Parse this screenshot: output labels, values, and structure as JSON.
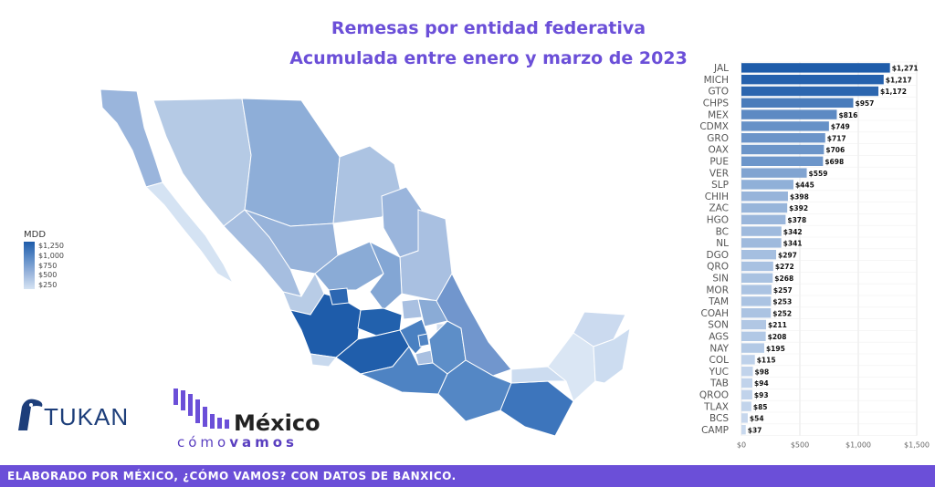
{
  "title_line1": "Remesas por entidad federativa",
  "title_line2": "Acumulada entre enero y marzo de 2023",
  "legend": {
    "title": "MDD",
    "labels": [
      "$1,250",
      "$1,000",
      "$750",
      "$500",
      "$250"
    ]
  },
  "logos": {
    "tukan": "TUKAN",
    "mcv_name": "México",
    "mcv_sub_light": "cómo",
    "mcv_sub_bold": "vamos"
  },
  "footer": "ELABORADO POR MÉXICO, ¿CÓMO VAMOS? CON DATOS DE BANXICO.",
  "colors": {
    "accent": "#6b4fd8",
    "bar_dark": "#1e5caa",
    "bar_light": "#c9d9ee"
  },
  "chart_data": {
    "type": "bar",
    "orientation": "horizontal",
    "categories": [
      "JAL",
      "MICH",
      "GTO",
      "CHPS",
      "MEX",
      "CDMX",
      "GRO",
      "OAX",
      "PUE",
      "VER",
      "SLP",
      "CHIH",
      "ZAC",
      "HGO",
      "BC",
      "NL",
      "DGO",
      "QRO",
      "SIN",
      "MOR",
      "TAM",
      "COAH",
      "SON",
      "AGS",
      "NAY",
      "COL",
      "YUC",
      "TAB",
      "QROO",
      "TLAX",
      "BCS",
      "CAMP"
    ],
    "values": [
      1271,
      1217,
      1172,
      957,
      816,
      749,
      717,
      706,
      698,
      559,
      445,
      398,
      392,
      378,
      342,
      341,
      297,
      272,
      268,
      257,
      253,
      252,
      211,
      208,
      195,
      115,
      98,
      94,
      93,
      85,
      54,
      37
    ],
    "data_labels": [
      "$1,271",
      "$1,217",
      "$1,172",
      "$957",
      "$816",
      "$749",
      "$717",
      "$706",
      "$698",
      "$559",
      "$445",
      "$398",
      "$392",
      "$378",
      "$342",
      "$341",
      "$297",
      "$272",
      "$268",
      "$257",
      "$253",
      "$252",
      "$211",
      "$208",
      "$195",
      "$115",
      "$98",
      "$94",
      "$93",
      "$85",
      "$54",
      "$37"
    ],
    "x_ticks": [
      "$0",
      "$500",
      "$1,000",
      "$1,500"
    ],
    "xlim": [
      0,
      1500
    ],
    "grid": true
  }
}
